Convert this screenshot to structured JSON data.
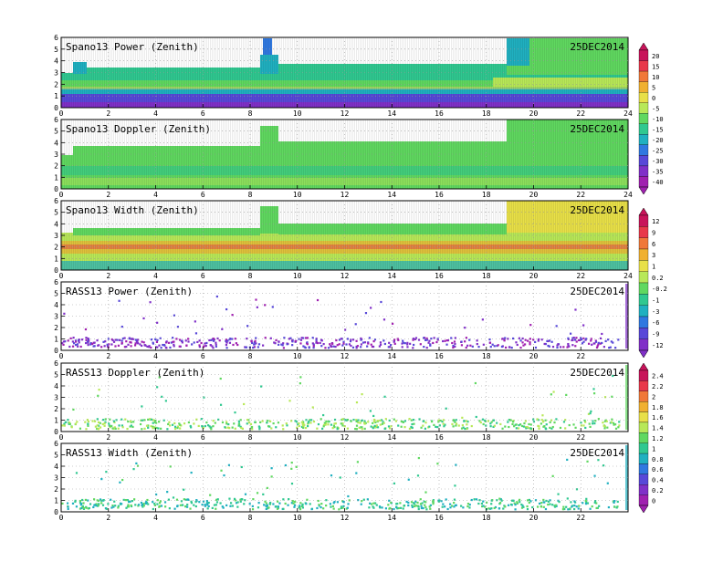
{
  "chart_data": [
    {
      "type": "heatmap",
      "title": "Spano13 Power (Zenith)",
      "date": "25DEC2014",
      "xlim": [
        0,
        24
      ],
      "ylim": [
        0,
        6
      ],
      "x_ticks": [
        "0",
        "2",
        "4",
        "6",
        "8",
        "10",
        "12",
        "14",
        "16",
        "18",
        "20",
        "22",
        "24"
      ],
      "y_ticks": [
        "0",
        "1",
        "2",
        "3",
        "4",
        "5",
        "6"
      ],
      "grid": true,
      "colorbar": {
        "ticks": [
          "20",
          "15",
          "10",
          "5",
          "0",
          "-5",
          "-10",
          "-15",
          "-20",
          "-25",
          "-30",
          "-35",
          "-40"
        ],
        "colors": [
          "#c8145a",
          "#e8384a",
          "#f07838",
          "#f0b030",
          "#e8e048",
          "#b8e858",
          "#60d860",
          "#30c890",
          "#20b0c0",
          "#3078e0",
          "#5848d8",
          "#8030c8",
          "#a020b0"
        ]
      },
      "rows": [
        {
          "y": 0.3,
          "color": "#8030c8"
        },
        {
          "y": 0.7,
          "color": "#3078e0"
        },
        {
          "y": 1.1,
          "color": "#20b0c0"
        },
        {
          "y": 1.6,
          "color": "#60d860"
        },
        {
          "y": 2.1,
          "color": "#b8e858"
        },
        {
          "y": 2.6,
          "color": "#60d860"
        },
        {
          "y": 3.2,
          "color": "#30c890"
        },
        {
          "y": 3.7,
          "color": "#20b0c0"
        }
      ]
    },
    {
      "type": "heatmap",
      "title": "Spano13 Doppler (Zenith)",
      "date": "25DEC2014",
      "xlim": [
        0,
        24
      ],
      "ylim": [
        0,
        6
      ],
      "x_ticks": [
        "0",
        "2",
        "4",
        "6",
        "8",
        "10",
        "12",
        "14",
        "16",
        "18",
        "20",
        "22",
        "24"
      ],
      "y_ticks": [
        "0",
        "1",
        "2",
        "3",
        "4",
        "5",
        "6"
      ],
      "grid": true
    },
    {
      "type": "heatmap",
      "title": "Spano13 Width (Zenith)",
      "date": "25DEC2014",
      "xlim": [
        0,
        24
      ],
      "ylim": [
        0,
        6
      ],
      "x_ticks": [
        "0",
        "2",
        "4",
        "6",
        "8",
        "10",
        "12",
        "14",
        "16",
        "18",
        "20",
        "22",
        "24"
      ],
      "y_ticks": [
        "0",
        "1",
        "2",
        "3",
        "4",
        "5",
        "6"
      ],
      "grid": true,
      "colorbar": {
        "ticks": [
          "12",
          "9",
          "6",
          "3",
          "1",
          "0.2",
          "-0.2",
          "-1",
          "-3",
          "-6",
          "-9",
          "-12"
        ],
        "colors": [
          "#c8145a",
          "#e8384a",
          "#f07838",
          "#f0b030",
          "#e8e048",
          "#b8e858",
          "#60d860",
          "#30c890",
          "#20b0c0",
          "#3078e0",
          "#5848d8",
          "#8030c8"
        ]
      }
    },
    {
      "type": "scatter",
      "title": "RASS13 Power (Zenith)",
      "date": "25DEC2014",
      "xlim": [
        0,
        24
      ],
      "ylim": [
        0,
        6
      ],
      "x_ticks": [
        "0",
        "2",
        "4",
        "6",
        "8",
        "10",
        "12",
        "14",
        "16",
        "18",
        "20",
        "22"
      ],
      "y_ticks": [
        "0",
        "1",
        "2",
        "3",
        "4",
        "5",
        "6"
      ],
      "grid": true
    },
    {
      "type": "scatter",
      "title": "RASS13 Doppler (Zenith)",
      "date": "25DEC2014",
      "xlim": [
        0,
        24
      ],
      "ylim": [
        0,
        6
      ],
      "x_ticks": [
        "0",
        "2",
        "4",
        "6",
        "8",
        "10",
        "12",
        "14",
        "16",
        "18",
        "20",
        "22"
      ],
      "y_ticks": [
        "0",
        "1",
        "2",
        "3",
        "4",
        "5",
        "6"
      ],
      "grid": true,
      "colorbar": {
        "ticks": [
          "2.4",
          "2.2",
          "2",
          "1.8",
          "1.6",
          "1.4",
          "1.2",
          "1",
          "0.8",
          "0.6",
          "0.4",
          "0.2",
          "0"
        ],
        "colors": [
          "#c8145a",
          "#e8384a",
          "#f07838",
          "#f0b030",
          "#e8e048",
          "#b8e858",
          "#60d860",
          "#30c890",
          "#20b0c0",
          "#3078e0",
          "#5848d8",
          "#8030c8",
          "#a020b0"
        ]
      }
    },
    {
      "type": "scatter",
      "title": "RASS13 Width (Zenith)",
      "date": "25DEC2014",
      "xlim": [
        0,
        24
      ],
      "ylim": [
        0,
        6
      ],
      "x_ticks": [
        "0",
        "2",
        "4",
        "6",
        "8",
        "10",
        "12",
        "14",
        "16",
        "18",
        "20",
        "22"
      ],
      "y_ticks": [
        "0",
        "1",
        "2",
        "3",
        "4",
        "5",
        "6"
      ],
      "grid": true
    }
  ]
}
